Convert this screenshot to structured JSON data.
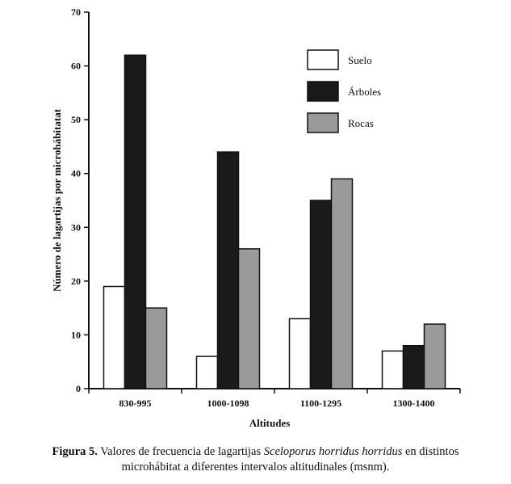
{
  "chart_data": {
    "type": "bar",
    "title": "",
    "xlabel": "Altitudes",
    "ylabel": "Número de lagartijas por microhábitatat",
    "categories": [
      "830-995",
      "1000-1098",
      "1100-1295",
      "1300-1400"
    ],
    "series": [
      {
        "name": "Suelo",
        "values": [
          19,
          6,
          13,
          7
        ],
        "color": "#ffffff"
      },
      {
        "name": "Árboles",
        "values": [
          62,
          44,
          35,
          8
        ],
        "color": "#1a1a1a"
      },
      {
        "name": "Rocas",
        "values": [
          15,
          26,
          39,
          12
        ],
        "color": "#9a9a9a"
      }
    ],
    "ylim": [
      0,
      70
    ],
    "yticks": [
      0,
      10,
      20,
      30,
      40,
      50,
      60,
      70
    ],
    "grid": false,
    "legend_position": "top-right"
  },
  "caption": {
    "label": "Figura 5.",
    "text_before": " Valores de frecuencia de lagartijas ",
    "species": "Sceloporus horridus horridus",
    "text_after": " en distintos",
    "line2": "microhábitat a diferentes intervalos altitudinales (msnm)."
  }
}
